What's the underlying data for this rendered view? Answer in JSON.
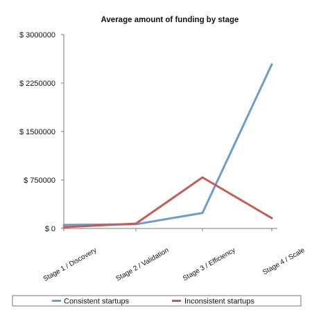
{
  "chart_data": {
    "type": "line",
    "title": "Average amount of funding by stage",
    "xlabel": "",
    "ylabel": "",
    "categories": [
      "Stage 1 / Discovery",
      "Stage 2 / Validation",
      "Stage 3 / Efficiency",
      "Stage 4 / Scale"
    ],
    "ylim": [
      0,
      3000000
    ],
    "yticks": [
      0,
      750000,
      1500000,
      2250000,
      3000000
    ],
    "ytick_labels": [
      "$ 0",
      "$ 750000",
      "$ 1500000",
      "$ 2250000",
      "$ 3000000"
    ],
    "grid": false,
    "legend_position": "bottom",
    "series": [
      {
        "name": "Consistent startups",
        "color": "#6a9bd1",
        "values": [
          55000,
          65000,
          240000,
          2540000
        ]
      },
      {
        "name": "Inconsistent startups",
        "color": "#c55a57",
        "values": [
          20000,
          75000,
          790000,
          160000
        ]
      }
    ]
  }
}
